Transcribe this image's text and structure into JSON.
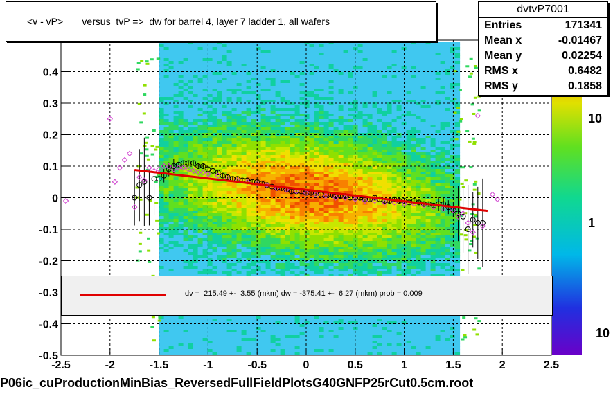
{
  "header": {
    "title": "<v - vP>       versus  tvP =>  dw for barrel 4, layer 7 ladder 1, all wafers"
  },
  "stats": {
    "name": "dvtvP7001",
    "rows": [
      {
        "label": "Entries",
        "value": "171341"
      },
      {
        "label": "Mean x",
        "value": "-0.01467"
      },
      {
        "label": "Mean y",
        "value": "0.02254"
      },
      {
        "label": "RMS x",
        "value": "0.6482"
      },
      {
        "label": "RMS y",
        "value": "0.1858"
      }
    ]
  },
  "fit": {
    "text": "dv =  215.49 +-  3.55 (mkm) dw = -375.41 +-  6.27 (mkm) prob = 0.009"
  },
  "footer": {
    "filename": "P06ic_cuProductionMinBias_ReversedFullFieldPlotsG40GNFP25rCut0.5cm.root"
  },
  "chart_data": {
    "type": "heatmap",
    "xlim": [
      -2.5,
      2.5
    ],
    "ylim": [
      -0.5,
      0.5
    ],
    "x_ticks": [
      "-2.5",
      "-2",
      "-1.5",
      "-1",
      "-0.5",
      "0",
      "0.5",
      "1",
      "1.5",
      "2",
      "2.5"
    ],
    "y_ticks": [
      "-0.5",
      "-0.4",
      "-0.3",
      "-0.2",
      "-0.1",
      "0",
      "0.1",
      "0.2",
      "0.3",
      "0.4"
    ],
    "grid": true,
    "colorbar_ticks": [
      "10",
      "1",
      "10"
    ],
    "colors": {
      "fit_line": "#e00000",
      "profile_black": "#000000",
      "profile_magenta": "#d040d0",
      "fit_box_bg": "#f0f0f0"
    },
    "fit_line": {
      "x": [
        -1.75,
        1.85
      ],
      "y": [
        0.088,
        -0.042
      ]
    },
    "profile_black": {
      "x": [
        -1.75,
        -1.7,
        -1.65,
        -1.6,
        -1.55,
        -1.5,
        -1.45,
        -1.4,
        -1.35,
        -1.3,
        -1.25,
        -1.2,
        -1.15,
        -1.1,
        -1.05,
        -1.0,
        -0.95,
        -0.9,
        -0.85,
        -0.8,
        -0.75,
        -0.7,
        -0.65,
        -0.6,
        -0.55,
        -0.5,
        -0.45,
        -0.4,
        -0.35,
        -0.3,
        -0.25,
        -0.2,
        -0.15,
        -0.1,
        -0.05,
        0.0,
        0.05,
        0.1,
        0.15,
        0.2,
        0.25,
        0.3,
        0.35,
        0.4,
        0.45,
        0.5,
        0.55,
        0.6,
        0.65,
        0.7,
        0.75,
        0.8,
        0.85,
        0.9,
        0.95,
        1.0,
        1.05,
        1.1,
        1.15,
        1.2,
        1.25,
        1.3,
        1.35,
        1.4,
        1.45,
        1.5,
        1.55,
        1.6,
        1.65,
        1.7,
        1.75,
        1.8
      ],
      "y": [
        0.0,
        0.04,
        0.05,
        0.0,
        0.06,
        0.06,
        0.07,
        0.09,
        0.1,
        0.105,
        0.11,
        0.11,
        0.11,
        0.1,
        0.1,
        0.09,
        0.085,
        0.08,
        0.07,
        0.065,
        0.06,
        0.06,
        0.055,
        0.055,
        0.05,
        0.05,
        0.045,
        0.04,
        0.035,
        0.03,
        0.03,
        0.025,
        0.02,
        0.02,
        0.02,
        0.015,
        0.015,
        0.015,
        0.01,
        0.01,
        0.01,
        0.005,
        0.005,
        0.005,
        0.0,
        0.0,
        0.0,
        -0.005,
        -0.005,
        0.0,
        -0.005,
        -0.01,
        -0.01,
        -0.005,
        -0.01,
        -0.01,
        -0.015,
        -0.01,
        -0.015,
        -0.02,
        -0.02,
        -0.025,
        -0.02,
        -0.02,
        -0.03,
        -0.04,
        -0.05,
        -0.06,
        -0.1,
        -0.07,
        -0.08,
        -0.08
      ]
    },
    "profile_magenta": {
      "x": [
        -2.45,
        -2.0,
        -1.95,
        -1.9,
        -1.85,
        -1.8,
        -1.75,
        -1.7,
        -1.65,
        -1.6,
        -1.55,
        -1.5,
        -1.45,
        -1.4,
        -1.35,
        -1.3,
        -1.25,
        -1.2,
        -1.15,
        -1.1,
        -1.05,
        -1.0,
        -0.9,
        -0.8,
        -0.7,
        -0.6,
        -0.5,
        -0.4,
        -0.3,
        -0.2,
        -0.1,
        0.0,
        0.1,
        0.2,
        0.3,
        0.4,
        0.5,
        0.6,
        0.7,
        0.8,
        0.9,
        1.0,
        1.1,
        1.2,
        1.3,
        1.4,
        1.5,
        1.55,
        1.6,
        1.65,
        1.7,
        1.75,
        1.8,
        1.85,
        1.9,
        1.95
      ],
      "y": [
        -0.01,
        0.25,
        0.05,
        0.095,
        0.12,
        0.14,
        -0.03,
        0.065,
        0.055,
        0.095,
        0.085,
        0.09,
        0.1,
        0.1,
        0.09,
        0.095,
        0.095,
        0.09,
        0.085,
        0.08,
        0.08,
        0.075,
        0.07,
        0.06,
        0.055,
        0.05,
        0.045,
        0.04,
        0.03,
        0.025,
        0.02,
        0.015,
        0.01,
        0.005,
        0.0,
        0.0,
        -0.005,
        -0.01,
        -0.01,
        -0.015,
        -0.015,
        -0.02,
        -0.02,
        -0.025,
        -0.03,
        -0.035,
        -0.04,
        -0.06,
        -0.05,
        -0.08,
        -0.11,
        0.26,
        -0.09,
        0.33,
        0.01,
        -0.005
      ]
    }
  }
}
